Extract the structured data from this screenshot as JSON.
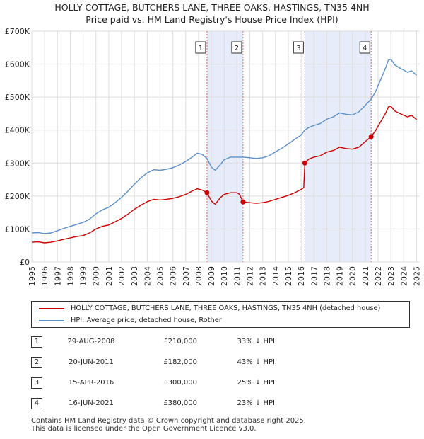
{
  "title": {
    "line1": "HOLLY COTTAGE, BUTCHERS LANE, THREE OAKS, HASTINGS, TN35 4NH",
    "line2": "Price paid vs. HM Land Registry's House Price Index (HPI)"
  },
  "colors": {
    "property": "#cc0000",
    "hpi": "#5b8fc9",
    "shade": "#e6ecf9",
    "marker_line": "#e06666",
    "grid": "#dddddd"
  },
  "chart_data": {
    "type": "line",
    "title": "Price paid vs. HM Land Registry's House Price Index (HPI)",
    "xlabel": "",
    "ylabel": "",
    "xlim": [
      1995,
      2025.25
    ],
    "ylim": [
      0,
      700000
    ],
    "grid": true,
    "y_ticks": [
      0,
      100000,
      200000,
      300000,
      400000,
      500000,
      600000,
      700000
    ],
    "y_tick_labels": [
      "£0",
      "£100K",
      "£200K",
      "£300K",
      "£400K",
      "£500K",
      "£600K",
      "£700K"
    ],
    "x_ticks": [
      1995,
      1996,
      1997,
      1998,
      1999,
      2000,
      2001,
      2002,
      2003,
      2004,
      2005,
      2006,
      2007,
      2008,
      2009,
      2010,
      2011,
      2012,
      2013,
      2014,
      2015,
      2016,
      2017,
      2018,
      2019,
      2020,
      2021,
      2022,
      2023,
      2024,
      2025
    ],
    "series": [
      {
        "name": "HOLLY COTTAGE, BUTCHERS LANE, THREE OAKS, HASTINGS, TN35 4NH (detached house)",
        "color": "#cc0000",
        "points": [
          [
            1995.0,
            60000
          ],
          [
            1995.5,
            61000
          ],
          [
            1996.0,
            58000
          ],
          [
            1996.5,
            60000
          ],
          [
            1997.0,
            64000
          ],
          [
            1997.5,
            69000
          ],
          [
            1998.0,
            73000
          ],
          [
            1998.5,
            77000
          ],
          [
            1999.0,
            80000
          ],
          [
            1999.5,
            88000
          ],
          [
            2000.0,
            100000
          ],
          [
            2000.5,
            108000
          ],
          [
            2001.0,
            112000
          ],
          [
            2001.5,
            122000
          ],
          [
            2002.0,
            132000
          ],
          [
            2002.5,
            145000
          ],
          [
            2003.0,
            160000
          ],
          [
            2003.5,
            172000
          ],
          [
            2004.0,
            183000
          ],
          [
            2004.5,
            190000
          ],
          [
            2005.0,
            188000
          ],
          [
            2005.5,
            190000
          ],
          [
            2006.0,
            193000
          ],
          [
            2006.5,
            198000
          ],
          [
            2007.0,
            205000
          ],
          [
            2007.5,
            215000
          ],
          [
            2007.9,
            222000
          ],
          [
            2008.3,
            218000
          ],
          [
            2008.66,
            210000
          ],
          [
            2009.0,
            185000
          ],
          [
            2009.3,
            175000
          ],
          [
            2009.7,
            195000
          ],
          [
            2010.0,
            205000
          ],
          [
            2010.5,
            210000
          ],
          [
            2011.0,
            210000
          ],
          [
            2011.2,
            205000
          ],
          [
            2011.47,
            182000
          ],
          [
            2012.0,
            180000
          ],
          [
            2012.5,
            178000
          ],
          [
            2013.0,
            180000
          ],
          [
            2013.5,
            184000
          ],
          [
            2014.0,
            190000
          ],
          [
            2014.5,
            196000
          ],
          [
            2015.0,
            202000
          ],
          [
            2015.5,
            210000
          ],
          [
            2016.0,
            220000
          ],
          [
            2016.2,
            225000
          ],
          [
            2016.29,
            300000
          ],
          [
            2016.6,
            312000
          ],
          [
            2017.0,
            318000
          ],
          [
            2017.5,
            322000
          ],
          [
            2018.0,
            333000
          ],
          [
            2018.5,
            338000
          ],
          [
            2019.0,
            348000
          ],
          [
            2019.5,
            344000
          ],
          [
            2020.0,
            342000
          ],
          [
            2020.5,
            348000
          ],
          [
            2021.0,
            365000
          ],
          [
            2021.46,
            380000
          ],
          [
            2021.8,
            398000
          ],
          [
            2022.0,
            412000
          ],
          [
            2022.3,
            432000
          ],
          [
            2022.6,
            452000
          ],
          [
            2022.8,
            470000
          ],
          [
            2023.0,
            472000
          ],
          [
            2023.3,
            458000
          ],
          [
            2023.6,
            452000
          ],
          [
            2024.0,
            445000
          ],
          [
            2024.3,
            440000
          ],
          [
            2024.6,
            445000
          ],
          [
            2025.0,
            432000
          ]
        ]
      },
      {
        "name": "HPI: Average price, detached house, Rother",
        "color": "#5b8fc9",
        "points": [
          [
            1995.0,
            88000
          ],
          [
            1995.5,
            89000
          ],
          [
            1996.0,
            86000
          ],
          [
            1996.5,
            88000
          ],
          [
            1997.0,
            95000
          ],
          [
            1997.5,
            102000
          ],
          [
            1998.0,
            108000
          ],
          [
            1998.5,
            114000
          ],
          [
            1999.0,
            120000
          ],
          [
            1999.5,
            130000
          ],
          [
            2000.0,
            146000
          ],
          [
            2000.5,
            158000
          ],
          [
            2001.0,
            166000
          ],
          [
            2001.5,
            180000
          ],
          [
            2002.0,
            196000
          ],
          [
            2002.5,
            215000
          ],
          [
            2003.0,
            236000
          ],
          [
            2003.5,
            255000
          ],
          [
            2004.0,
            270000
          ],
          [
            2004.5,
            280000
          ],
          [
            2005.0,
            278000
          ],
          [
            2005.5,
            281000
          ],
          [
            2006.0,
            286000
          ],
          [
            2006.5,
            294000
          ],
          [
            2007.0,
            305000
          ],
          [
            2007.5,
            318000
          ],
          [
            2007.9,
            330000
          ],
          [
            2008.3,
            326000
          ],
          [
            2008.66,
            314000
          ],
          [
            2009.0,
            288000
          ],
          [
            2009.3,
            278000
          ],
          [
            2009.7,
            295000
          ],
          [
            2010.0,
            310000
          ],
          [
            2010.5,
            318000
          ],
          [
            2011.0,
            318000
          ],
          [
            2011.47,
            318000
          ],
          [
            2012.0,
            316000
          ],
          [
            2012.5,
            314000
          ],
          [
            2013.0,
            316000
          ],
          [
            2013.5,
            322000
          ],
          [
            2014.0,
            334000
          ],
          [
            2014.5,
            345000
          ],
          [
            2015.0,
            358000
          ],
          [
            2015.5,
            372000
          ],
          [
            2016.0,
            385000
          ],
          [
            2016.29,
            400000
          ],
          [
            2016.6,
            408000
          ],
          [
            2017.0,
            414000
          ],
          [
            2017.5,
            420000
          ],
          [
            2018.0,
            433000
          ],
          [
            2018.5,
            440000
          ],
          [
            2019.0,
            452000
          ],
          [
            2019.5,
            448000
          ],
          [
            2020.0,
            446000
          ],
          [
            2020.5,
            455000
          ],
          [
            2021.0,
            475000
          ],
          [
            2021.46,
            494000
          ],
          [
            2021.8,
            516000
          ],
          [
            2022.0,
            535000
          ],
          [
            2022.3,
            562000
          ],
          [
            2022.6,
            590000
          ],
          [
            2022.8,
            612000
          ],
          [
            2023.0,
            615000
          ],
          [
            2023.3,
            598000
          ],
          [
            2023.6,
            590000
          ],
          [
            2024.0,
            582000
          ],
          [
            2024.3,
            575000
          ],
          [
            2024.6,
            580000
          ],
          [
            2025.0,
            566000
          ]
        ]
      }
    ],
    "shaded_ranges": [
      [
        2008.66,
        2011.47
      ],
      [
        2016.29,
        2021.46
      ]
    ],
    "markers": [
      {
        "label": "1",
        "x": 2008.66,
        "y": 210000
      },
      {
        "label": "2",
        "x": 2011.47,
        "y": 182000
      },
      {
        "label": "3",
        "x": 2016.29,
        "y": 300000
      },
      {
        "label": "4",
        "x": 2021.46,
        "y": 380000
      }
    ]
  },
  "legend": {
    "items": [
      {
        "label": "HOLLY COTTAGE, BUTCHERS LANE, THREE OAKS, HASTINGS, TN35 4NH (detached house)",
        "color": "#cc0000"
      },
      {
        "label": "HPI: Average price, detached house, Rother",
        "color": "#5b8fc9"
      }
    ]
  },
  "transactions": [
    {
      "num": "1",
      "date": "29-AUG-2008",
      "price": "£210,000",
      "hpi": "33% ↓ HPI"
    },
    {
      "num": "2",
      "date": "20-JUN-2011",
      "price": "£182,000",
      "hpi": "43% ↓ HPI"
    },
    {
      "num": "3",
      "date": "15-APR-2016",
      "price": "£300,000",
      "hpi": "25% ↓ HPI"
    },
    {
      "num": "4",
      "date": "16-JUN-2021",
      "price": "£380,000",
      "hpi": "23% ↓ HPI"
    }
  ],
  "footer": {
    "line1": "Contains HM Land Registry data © Crown copyright and database right 2025.",
    "line2": "This data is licensed under the Open Government Licence v3.0."
  }
}
